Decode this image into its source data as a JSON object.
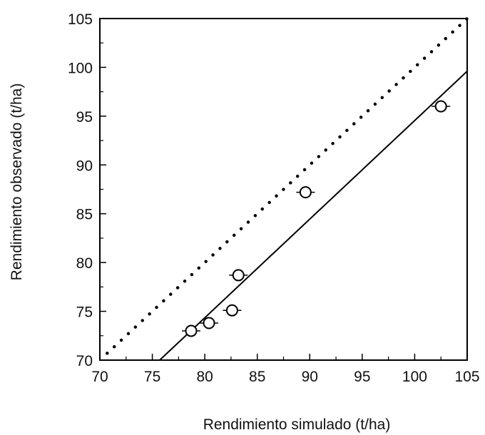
{
  "chart_data": {
    "type": "scatter",
    "title": "",
    "xlabel": "Rendimiento simulado (t/ha)",
    "ylabel": "Rendimiento observado (t/ha)",
    "xlim": [
      70,
      105
    ],
    "ylim": [
      70,
      105
    ],
    "xticks": [
      70,
      75,
      80,
      85,
      90,
      95,
      100,
      105
    ],
    "yticks": [
      70,
      75,
      80,
      85,
      90,
      95,
      100,
      105
    ],
    "grid": false,
    "legend": "none",
    "series": [
      {
        "type": "scatter",
        "marker": "open-circle",
        "x": [
          78.7,
          80.4,
          82.6,
          83.2,
          89.6,
          102.5
        ],
        "y": [
          73.0,
          73.8,
          75.1,
          78.7,
          87.2,
          96.0
        ]
      }
    ],
    "lines": [
      {
        "style": "solid",
        "x": [
          75.7,
          105
        ],
        "y": [
          70,
          99.6
        ]
      },
      {
        "style": "dotted",
        "x": [
          70.7,
          105
        ],
        "y": [
          70.7,
          105
        ]
      }
    ],
    "colors": {
      "marks": "#000000",
      "background": "#ffffff"
    }
  }
}
